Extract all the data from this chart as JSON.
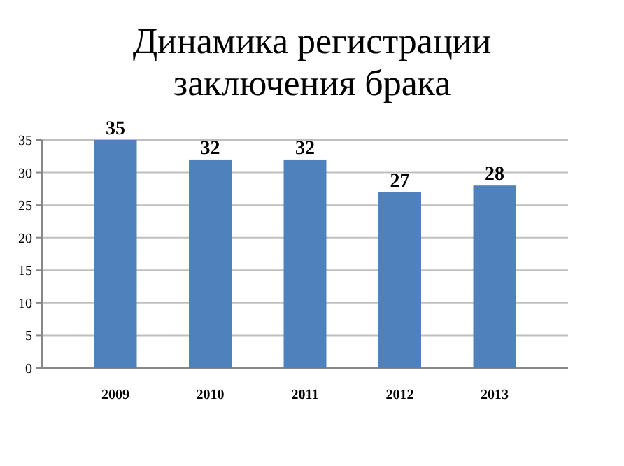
{
  "chart_data": {
    "type": "bar",
    "title": "Динамика регистрации заключения брака",
    "categories": [
      "2009",
      "2010",
      "2011",
      "2012",
      "2013"
    ],
    "values": [
      35,
      32,
      32,
      27,
      28
    ],
    "color": "#4f81bd",
    "ylim": [
      0,
      35
    ],
    "yticks": [
      0,
      5,
      10,
      15,
      20,
      25,
      30,
      35
    ],
    "grid": "y",
    "data_labels": true
  }
}
